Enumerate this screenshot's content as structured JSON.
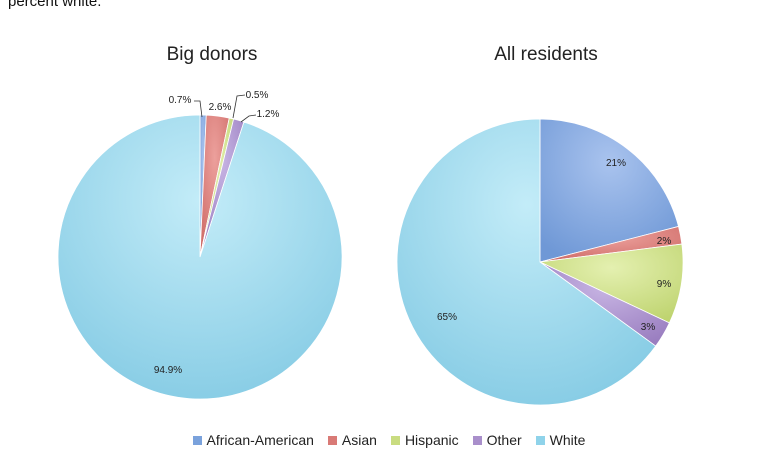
{
  "top_text": "percent white.",
  "chart_data": [
    {
      "type": "pie",
      "title": "Big donors",
      "categories": [
        "African-American",
        "Asian",
        "Hispanic",
        "Other",
        "White"
      ],
      "values": [
        0.7,
        2.6,
        0.5,
        1.2,
        94.9
      ],
      "labels": [
        "0.7%",
        "2.6%",
        "0.5%",
        "1.2%",
        "94.9%"
      ],
      "colors": [
        "#7aa2dc",
        "#d97a76",
        "#c9dc80",
        "#a98fcb",
        "#8fd3ea"
      ]
    },
    {
      "type": "pie",
      "title": "All residents",
      "categories": [
        "African-American",
        "Asian",
        "Hispanic",
        "Other",
        "White"
      ],
      "values": [
        21,
        2,
        9,
        3,
        65
      ],
      "labels": [
        "21%",
        "2%",
        "9%",
        "3%",
        "65%"
      ],
      "colors": [
        "#7aa2dc",
        "#d97a76",
        "#c9dc80",
        "#a98fcb",
        "#8fd3ea"
      ]
    }
  ],
  "legend": {
    "position": "bottom",
    "items": [
      {
        "label": "African-American",
        "color": "#7aa2dc"
      },
      {
        "label": "Asian",
        "color": "#d97a76"
      },
      {
        "label": "Hispanic",
        "color": "#c9dc80"
      },
      {
        "label": "Other",
        "color": "#a98fcb"
      },
      {
        "label": "White",
        "color": "#8fd3ea"
      }
    ]
  }
}
